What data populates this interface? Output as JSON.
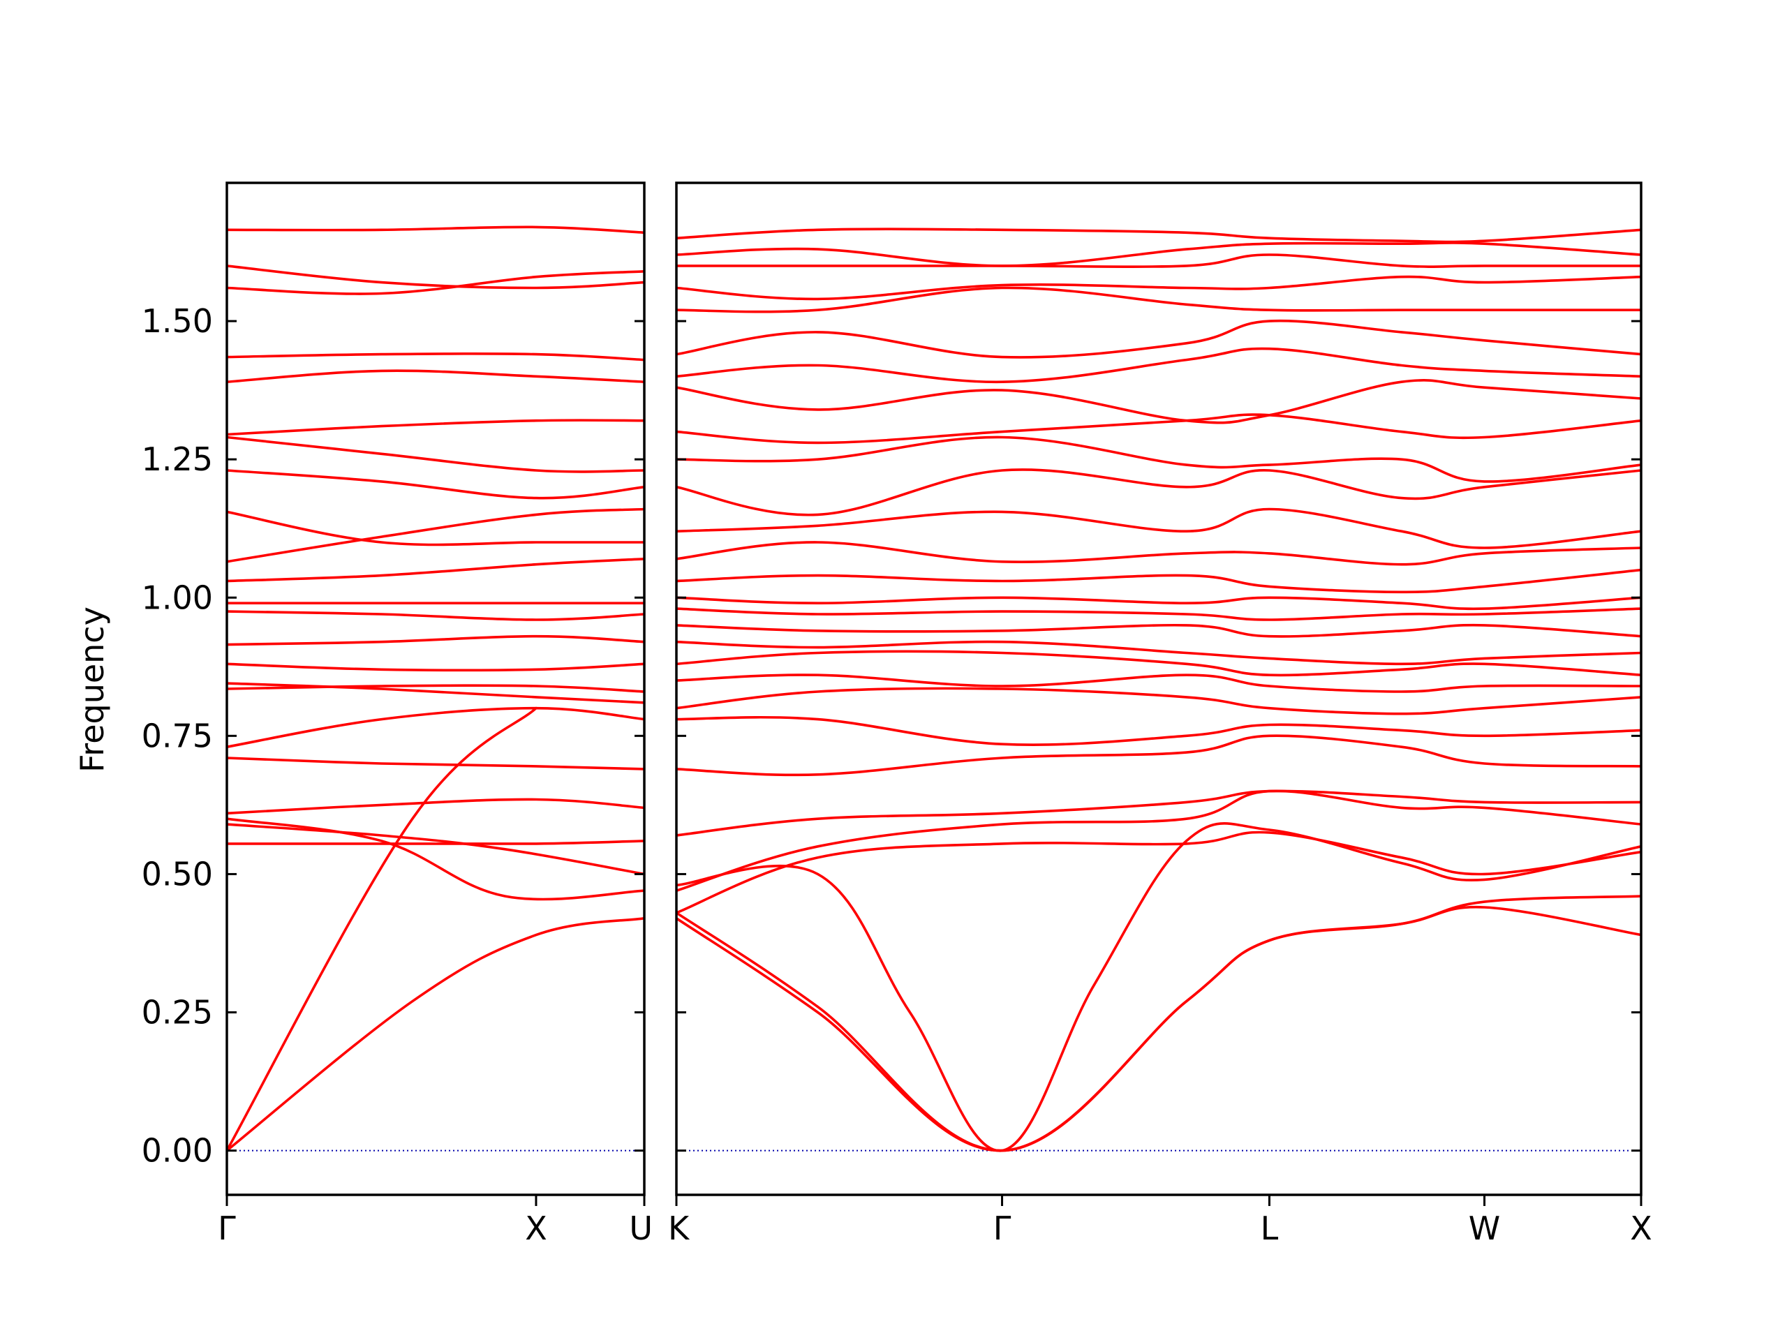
{
  "chart_data": {
    "type": "line",
    "title": "",
    "xlabel": "",
    "ylabel": "Frequency",
    "ylim": [
      -0.08,
      1.75
    ],
    "yticks": [
      0.0,
      0.25,
      0.5,
      0.75,
      1.0,
      1.25,
      1.5
    ],
    "ytick_labels": [
      "0.00",
      "0.25",
      "0.50",
      "0.75",
      "1.00",
      "1.25",
      "1.50"
    ],
    "grid": false,
    "legend": "none",
    "colors": {
      "bands": "#ff0000",
      "zero_line": "#0000aa",
      "axes": "#000000"
    },
    "x_units": "path position (Γ = 0 at start of each segment group)",
    "panels": [
      {
        "name": "left",
        "xlim": [
          0,
          1.35
        ],
        "high_symmetry_points": [
          {
            "label": "Γ",
            "x": 0
          },
          {
            "label": "X",
            "x": 1.0
          },
          {
            "label": "U",
            "x": 1.35
          }
        ],
        "bands": [
          {
            "x": [
              0,
              0.6,
              1.0,
              1.35
            ],
            "y": [
              0,
              0.27,
              0.39,
              0.42
            ]
          },
          {
            "x": [
              0,
              0.6,
              1.0
            ],
            "y": [
              0,
              0.6,
              0.8
            ]
          },
          {
            "x": [
              0,
              0.5,
              1.0,
              1.35
            ],
            "y": [
              0.555,
              0.555,
              0.555,
              0.56
            ]
          },
          {
            "x": [
              0,
              0.5,
              0.9,
              1.35
            ],
            "y": [
              0.59,
              0.57,
              0.545,
              0.5
            ]
          },
          {
            "x": [
              0,
              0.5,
              0.9,
              1.35
            ],
            "y": [
              0.6,
              0.56,
              0.46,
              0.47
            ]
          },
          {
            "x": [
              0,
              0.5,
              1.0,
              1.35
            ],
            "y": [
              0.61,
              0.625,
              0.635,
              0.62
            ]
          },
          {
            "x": [
              0,
              0.5,
              1.0,
              1.35
            ],
            "y": [
              0.71,
              0.7,
              0.695,
              0.69
            ]
          },
          {
            "x": [
              0,
              0.5,
              1.0,
              1.35
            ],
            "y": [
              0.73,
              0.78,
              0.8,
              0.78
            ]
          },
          {
            "x": [
              0,
              0.5,
              1.0,
              1.35
            ],
            "y": [
              0.835,
              0.84,
              0.84,
              0.83
            ]
          },
          {
            "x": [
              0,
              0.5,
              1.0,
              1.35
            ],
            "y": [
              0.845,
              0.835,
              0.82,
              0.81
            ]
          },
          {
            "x": [
              0,
              0.5,
              1.0,
              1.35
            ],
            "y": [
              0.88,
              0.87,
              0.87,
              0.88
            ]
          },
          {
            "x": [
              0,
              0.5,
              1.0,
              1.35
            ],
            "y": [
              0.915,
              0.92,
              0.93,
              0.92
            ]
          },
          {
            "x": [
              0,
              0.5,
              1.0,
              1.35
            ],
            "y": [
              0.975,
              0.97,
              0.96,
              0.97
            ]
          },
          {
            "x": [
              0,
              0.5,
              1.0,
              1.35
            ],
            "y": [
              0.99,
              0.99,
              0.99,
              0.99
            ]
          },
          {
            "x": [
              0,
              0.5,
              1.0,
              1.35
            ],
            "y": [
              1.03,
              1.04,
              1.06,
              1.07
            ]
          },
          {
            "x": [
              0,
              0.5,
              1.0,
              1.35
            ],
            "y": [
              1.065,
              1.11,
              1.15,
              1.16
            ]
          },
          {
            "x": [
              0,
              0.5,
              1.0,
              1.35
            ],
            "y": [
              1.155,
              1.1,
              1.1,
              1.1
            ]
          },
          {
            "x": [
              0,
              0.5,
              1.0,
              1.35
            ],
            "y": [
              1.23,
              1.21,
              1.18,
              1.2
            ]
          },
          {
            "x": [
              0,
              0.5,
              1.0,
              1.35
            ],
            "y": [
              1.29,
              1.26,
              1.23,
              1.23
            ]
          },
          {
            "x": [
              0,
              0.5,
              1.0,
              1.35
            ],
            "y": [
              1.295,
              1.31,
              1.32,
              1.32
            ]
          },
          {
            "x": [
              0,
              0.5,
              1.0,
              1.35
            ],
            "y": [
              1.39,
              1.41,
              1.4,
              1.39
            ]
          },
          {
            "x": [
              0,
              0.5,
              1.0,
              1.35
            ],
            "y": [
              1.435,
              1.44,
              1.44,
              1.43
            ]
          },
          {
            "x": [
              0,
              0.5,
              1.0,
              1.35
            ],
            "y": [
              1.56,
              1.55,
              1.58,
              1.59
            ]
          },
          {
            "x": [
              0,
              0.5,
              1.0,
              1.35
            ],
            "y": [
              1.6,
              1.57,
              1.56,
              1.57
            ]
          },
          {
            "x": [
              0,
              0.5,
              1.0,
              1.35
            ],
            "y": [
              1.665,
              1.665,
              1.67,
              1.66
            ]
          }
        ]
      },
      {
        "name": "right",
        "xlim": [
          -1.06,
          2.08
        ],
        "high_symmetry_points": [
          {
            "label": "K",
            "x": -1.06
          },
          {
            "label": "Γ",
            "x": 0
          },
          {
            "label": "L",
            "x": 0.87
          },
          {
            "label": "W",
            "x": 1.57
          },
          {
            "label": "X",
            "x": 2.08
          }
        ],
        "bands": [
          {
            "x": [
              -1.06,
              -0.6,
              0,
              0.6,
              0.87,
              1.3,
              1.57,
              2.08
            ],
            "y": [
              0.42,
              0.25,
              0,
              0.27,
              0.38,
              0.41,
              0.44,
              0.39
            ]
          },
          {
            "x": [
              -1.06,
              -0.6,
              0,
              0.6,
              0.87,
              1.3,
              1.57,
              2.08
            ],
            "y": [
              0.43,
              0.26,
              0,
              0.27,
              0.38,
              0.41,
              0.45,
              0.46
            ]
          },
          {
            "x": [
              -1.06,
              -0.6,
              -0.3,
              0,
              0.3,
              0.6,
              0.87,
              1.3,
              1.57,
              2.08
            ],
            "y": [
              0.48,
              0.5,
              0.25,
              0,
              0.3,
              0.56,
              0.58,
              0.52,
              0.49,
              0.55
            ]
          },
          {
            "x": [
              -1.06,
              -0.6,
              0,
              0.6,
              0.87,
              1.3,
              1.57,
              2.08
            ],
            "y": [
              0.43,
              0.53,
              0.555,
              0.555,
              0.575,
              0.53,
              0.5,
              0.54
            ]
          },
          {
            "x": [
              -1.06,
              -0.6,
              0,
              0.6,
              0.87,
              1.3,
              1.57,
              2.08
            ],
            "y": [
              0.47,
              0.55,
              0.59,
              0.6,
              0.65,
              0.62,
              0.62,
              0.59
            ]
          },
          {
            "x": [
              -1.06,
              -0.6,
              0,
              0.6,
              0.87,
              1.3,
              1.57,
              2.08
            ],
            "y": [
              0.57,
              0.6,
              0.61,
              0.63,
              0.65,
              0.64,
              0.63,
              0.63
            ]
          },
          {
            "x": [
              -1.06,
              -0.6,
              0,
              0.6,
              0.87,
              1.3,
              1.57,
              2.08
            ],
            "y": [
              0.69,
              0.68,
              0.71,
              0.72,
              0.75,
              0.73,
              0.7,
              0.695
            ]
          },
          {
            "x": [
              -1.06,
              -0.6,
              0,
              0.6,
              0.87,
              1.3,
              1.57,
              2.08
            ],
            "y": [
              0.78,
              0.78,
              0.735,
              0.75,
              0.77,
              0.76,
              0.75,
              0.76
            ]
          },
          {
            "x": [
              -1.06,
              -0.6,
              0,
              0.6,
              0.87,
              1.3,
              1.57,
              2.08
            ],
            "y": [
              0.8,
              0.83,
              0.835,
              0.82,
              0.8,
              0.79,
              0.8,
              0.82
            ]
          },
          {
            "x": [
              -1.06,
              -0.6,
              0,
              0.6,
              0.87,
              1.3,
              1.57,
              2.08
            ],
            "y": [
              0.85,
              0.86,
              0.84,
              0.86,
              0.84,
              0.83,
              0.84,
              0.84
            ]
          },
          {
            "x": [
              -1.06,
              -0.6,
              0,
              0.6,
              0.87,
              1.3,
              1.57,
              2.08
            ],
            "y": [
              0.88,
              0.9,
              0.9,
              0.88,
              0.86,
              0.87,
              0.88,
              0.86
            ]
          },
          {
            "x": [
              -1.06,
              -0.6,
              0,
              0.6,
              0.87,
              1.3,
              1.57,
              2.08
            ],
            "y": [
              0.92,
              0.91,
              0.92,
              0.9,
              0.89,
              0.88,
              0.89,
              0.9
            ]
          },
          {
            "x": [
              -1.06,
              -0.6,
              0,
              0.6,
              0.87,
              1.3,
              1.57,
              2.08
            ],
            "y": [
              0.95,
              0.94,
              0.94,
              0.95,
              0.93,
              0.94,
              0.95,
              0.93
            ]
          },
          {
            "x": [
              -1.06,
              -0.6,
              0,
              0.6,
              0.87,
              1.3,
              1.57,
              2.08
            ],
            "y": [
              0.98,
              0.97,
              0.975,
              0.97,
              0.96,
              0.97,
              0.97,
              0.98
            ]
          },
          {
            "x": [
              -1.06,
              -0.6,
              0,
              0.6,
              0.87,
              1.3,
              1.57,
              2.08
            ],
            "y": [
              1.0,
              0.99,
              1.0,
              0.99,
              1.0,
              0.99,
              0.98,
              1.0
            ]
          },
          {
            "x": [
              -1.06,
              -0.6,
              0,
              0.6,
              0.87,
              1.3,
              1.57,
              2.08
            ],
            "y": [
              1.03,
              1.04,
              1.03,
              1.04,
              1.02,
              1.01,
              1.02,
              1.05
            ]
          },
          {
            "x": [
              -1.06,
              -0.6,
              0,
              0.6,
              0.87,
              1.3,
              1.57,
              2.08
            ],
            "y": [
              1.07,
              1.1,
              1.065,
              1.08,
              1.08,
              1.06,
              1.08,
              1.09
            ]
          },
          {
            "x": [
              -1.06,
              -0.6,
              0,
              0.6,
              0.87,
              1.3,
              1.57,
              2.08
            ],
            "y": [
              1.12,
              1.13,
              1.155,
              1.12,
              1.16,
              1.12,
              1.09,
              1.12
            ]
          },
          {
            "x": [
              -1.06,
              -0.6,
              0,
              0.6,
              0.87,
              1.3,
              1.57,
              2.08
            ],
            "y": [
              1.2,
              1.15,
              1.23,
              1.2,
              1.23,
              1.18,
              1.2,
              1.23
            ]
          },
          {
            "x": [
              -1.06,
              -0.6,
              0,
              0.6,
              0.87,
              1.3,
              1.57,
              2.08
            ],
            "y": [
              1.25,
              1.25,
              1.29,
              1.24,
              1.24,
              1.25,
              1.21,
              1.24
            ]
          },
          {
            "x": [
              -1.06,
              -0.6,
              0,
              0.6,
              0.87,
              1.3,
              1.57,
              2.08
            ],
            "y": [
              1.3,
              1.28,
              1.3,
              1.32,
              1.33,
              1.3,
              1.29,
              1.32
            ]
          },
          {
            "x": [
              -1.06,
              -0.6,
              0,
              0.6,
              0.87,
              1.3,
              1.57,
              2.08
            ],
            "y": [
              1.38,
              1.34,
              1.375,
              1.32,
              1.33,
              1.39,
              1.38,
              1.36
            ]
          },
          {
            "x": [
              -1.06,
              -0.6,
              0,
              0.6,
              0.87,
              1.3,
              1.57,
              2.08
            ],
            "y": [
              1.4,
              1.42,
              1.39,
              1.43,
              1.45,
              1.42,
              1.41,
              1.4
            ]
          },
          {
            "x": [
              -1.06,
              -0.6,
              0,
              0.6,
              0.87,
              1.3,
              1.57,
              2.08
            ],
            "y": [
              1.44,
              1.48,
              1.435,
              1.46,
              1.5,
              1.48,
              1.465,
              1.44
            ]
          },
          {
            "x": [
              -1.06,
              -0.6,
              0,
              0.6,
              0.87,
              1.3,
              1.57,
              2.08
            ],
            "y": [
              1.52,
              1.52,
              1.56,
              1.53,
              1.52,
              1.52,
              1.52,
              1.52
            ]
          },
          {
            "x": [
              -1.06,
              -0.6,
              0,
              0.6,
              0.87,
              1.3,
              1.57,
              2.08
            ],
            "y": [
              1.56,
              1.54,
              1.565,
              1.56,
              1.56,
              1.58,
              1.57,
              1.58
            ]
          },
          {
            "x": [
              -1.06,
              -0.6,
              0,
              0.6,
              0.87,
              1.3,
              1.57,
              2.08
            ],
            "y": [
              1.6,
              1.6,
              1.6,
              1.6,
              1.62,
              1.6,
              1.6,
              1.6
            ]
          },
          {
            "x": [
              -1.06,
              -0.6,
              0,
              0.6,
              0.87,
              1.3,
              1.57,
              2.08
            ],
            "y": [
              1.62,
              1.63,
              1.6,
              1.63,
              1.64,
              1.64,
              1.64,
              1.62
            ]
          },
          {
            "x": [
              -1.06,
              -0.6,
              0,
              0.6,
              0.87,
              1.3,
              1.57,
              2.08
            ],
            "y": [
              1.65,
              1.665,
              1.665,
              1.66,
              1.65,
              1.645,
              1.645,
              1.665
            ]
          }
        ]
      }
    ]
  }
}
